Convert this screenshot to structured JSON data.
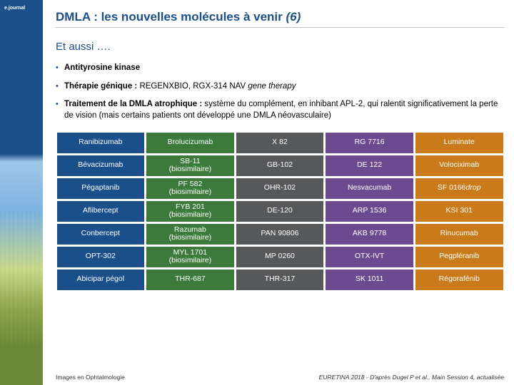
{
  "sidebar": {
    "logo": "e.journal"
  },
  "header": {
    "title_a": "DMLA : les nouvelles molécules à venir ",
    "title_b": "(6)"
  },
  "subtitle": "Et aussi ….",
  "bullets": [
    {
      "bold": "Antityrosine kinase",
      "rest": ""
    },
    {
      "bold": "Thérapie génique : ",
      "rest": "REGENXBIO, RGX-314 NAV ",
      "em": "gene therapy"
    },
    {
      "bold": "Traitement de la DMLA atrophique : ",
      "rest": "système du complément, en inhibant APL-2, qui ralentit significativement la perte de vision (mais certains patients ont développé une DMLA néovasculaire)"
    }
  ],
  "table": {
    "col_colors": [
      "#1b4f8a",
      "#3b7a3a",
      "#57585a",
      "#6d4a8f",
      "#c97a1a"
    ],
    "rows": [
      [
        "Ranibizumab",
        "Brolucizumab",
        "X 82",
        "RG 7716",
        "Luminate"
      ],
      [
        "Bévacizumab",
        "SB-11\n(biosimilaire)",
        "GB-102",
        "DE 122",
        "Volociximab"
      ],
      [
        "Pégaptanib",
        "PF 582\n(biosimilaire)",
        "OHR-102",
        "Nesvacumab",
        "SF 0166 <em>drop</em>"
      ],
      [
        "Aflibercept",
        "FYB 201\n(biosimilaire)",
        "DE-120",
        "ARP 1536",
        "KSI 301"
      ],
      [
        "Conbercept",
        "Razumab\n(biosimilaire)",
        "PAN 90806",
        "AKB 9778",
        "Rinucumab"
      ],
      [
        "OPT-302",
        "MYL 1701\n(biosimilaire)",
        "MP 0260",
        "OTX-IVT",
        "Pegpléranib"
      ],
      [
        "Abicipar pégol",
        "THR-687",
        "THR-317",
        "SK 1011",
        "Régorafénib"
      ]
    ]
  },
  "footer": {
    "left": "Images en Ophtalmologie",
    "right": "EURETINA 2018 - D'après Dugel P et al., Main Session 4, actualisée"
  }
}
